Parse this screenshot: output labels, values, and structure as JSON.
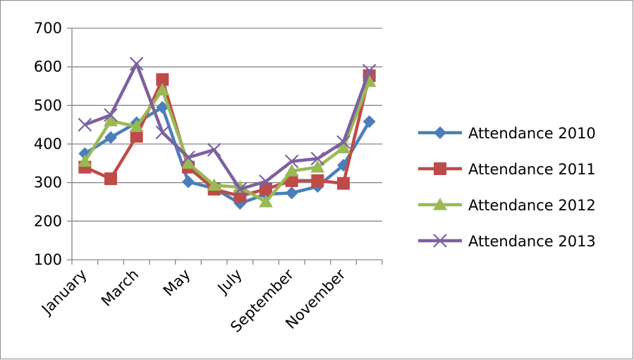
{
  "chart_data": {
    "type": "line",
    "title": "",
    "xlabel": "",
    "ylabel": "",
    "ylim": [
      100,
      700
    ],
    "yticks": [
      100,
      200,
      300,
      400,
      500,
      600,
      700
    ],
    "grid": "horizontal",
    "legend_position": "right",
    "categories": [
      "January",
      "February",
      "March",
      "April",
      "May",
      "June",
      "July",
      "August",
      "September",
      "October",
      "November",
      "December"
    ],
    "visible_category_labels": [
      "January",
      "March",
      "May",
      "July",
      "September",
      "November"
    ],
    "series": [
      {
        "name": "Attendance 2010",
        "color": "#4a7ebb",
        "marker": "diamond",
        "values": [
          375,
          417,
          455,
          495,
          302,
          285,
          246,
          270,
          273,
          290,
          345,
          458
        ]
      },
      {
        "name": "Attendance 2011",
        "color": "#be4b48",
        "marker": "square",
        "values": [
          340,
          310,
          420,
          567,
          340,
          283,
          265,
          283,
          305,
          305,
          298,
          577
        ]
      },
      {
        "name": "Attendance 2012",
        "color": "#98b954",
        "marker": "triangle",
        "values": [
          355,
          460,
          445,
          540,
          350,
          293,
          288,
          250,
          330,
          340,
          390,
          562
        ]
      },
      {
        "name": "Attendance 2013",
        "color": "#7d60a0",
        "marker": "x",
        "values": [
          450,
          475,
          608,
          430,
          365,
          385,
          283,
          303,
          355,
          362,
          405,
          590
        ]
      }
    ]
  }
}
